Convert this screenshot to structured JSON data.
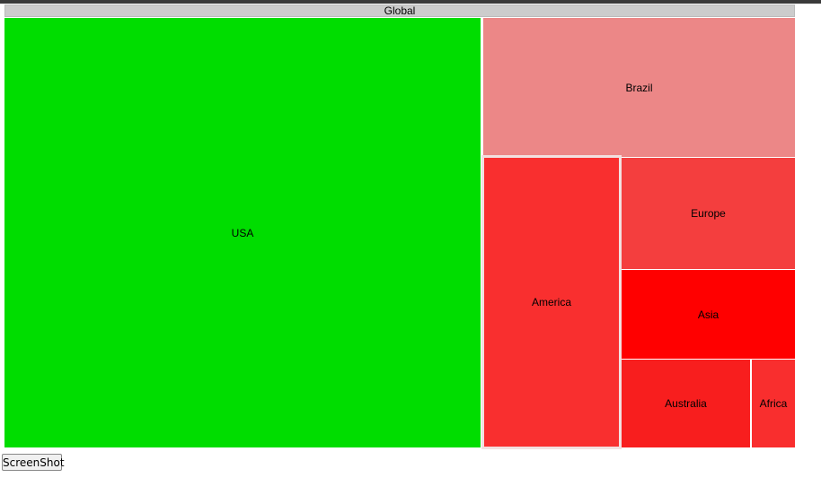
{
  "header": {
    "title": "Global",
    "color": "#cccccc"
  },
  "nodes": [
    {
      "label": "USA",
      "color": "#00dd00"
    },
    {
      "label": "Brazil",
      "color": "#ec8787"
    },
    {
      "label": "America",
      "color": "#f92f2f"
    },
    {
      "label": "Europe",
      "color": "#f43e3e"
    },
    {
      "label": "Asia",
      "color": "#ff0000"
    },
    {
      "label": "Australia",
      "color": "#f81e1e"
    },
    {
      "label": "Africa",
      "color": "#f92e2e"
    }
  ],
  "button": {
    "label": "ScreenShot"
  }
}
